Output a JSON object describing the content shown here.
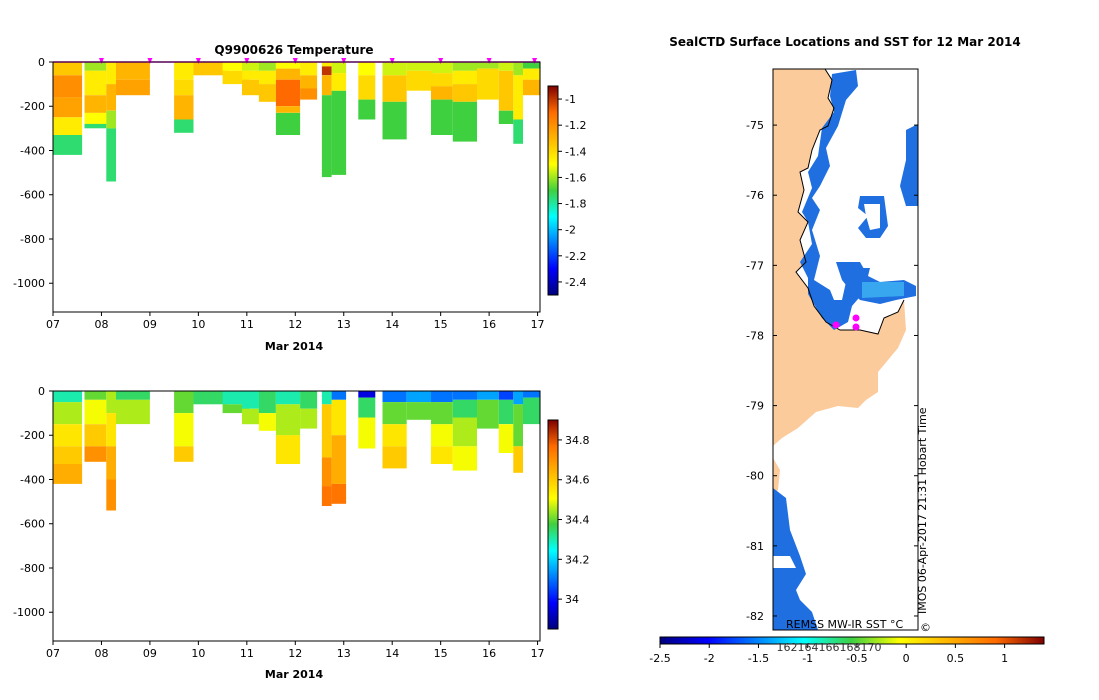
{
  "chart_data": [
    {
      "type": "heatmap",
      "title": "Q9900626  Temperature",
      "xlabel": "Mar 2014",
      "ylabel": "",
      "x_tick_labels": [
        "07",
        "08",
        "09",
        "10",
        "11",
        "12",
        "13",
        "14",
        "15",
        "16",
        "17"
      ],
      "x_range_days": [
        7,
        17.05
      ],
      "y_tick_labels": [
        "0",
        "-200",
        "-400",
        "-600",
        "-800",
        "-1000"
      ],
      "ylim": [
        -1130,
        0
      ],
      "colorbar_ticks": [
        "-1",
        "-1.2",
        "-1.4",
        "-1.6",
        "-1.8",
        "-2",
        "-2.2",
        "-2.4"
      ],
      "colorbar_range": [
        -2.5,
        -0.9
      ],
      "profile_markers": [
        8,
        9,
        10,
        11,
        12,
        13,
        14,
        15,
        16,
        17
      ],
      "profiles": [
        {
          "day": 7.0,
          "w": 0.6,
          "depth": 420,
          "layers": [
            [
              0,
              -1.35
            ],
            [
              60,
              -1.2
            ],
            [
              160,
              -1.25
            ],
            [
              250,
              -1.45
            ],
            [
              330,
              -1.75
            ]
          ]
        },
        {
          "day": 7.65,
          "w": 0.45,
          "depth": 300,
          "layers": [
            [
              0,
              -1.6
            ],
            [
              40,
              -1.45
            ],
            [
              150,
              -1.3
            ],
            [
              230,
              -1.5
            ],
            [
              280,
              -1.75
            ]
          ]
        },
        {
          "day": 8.1,
          "w": 0.2,
          "depth": 540,
          "layers": [
            [
              0,
              -1.45
            ],
            [
              100,
              -1.3
            ],
            [
              220,
              -1.6
            ],
            [
              300,
              -1.75
            ]
          ]
        },
        {
          "day": 8.3,
          "w": 0.7,
          "depth": 150,
          "layers": [
            [
              0,
              -1.3
            ],
            [
              80,
              -1.25
            ]
          ]
        },
        {
          "day": 9.5,
          "w": 0.4,
          "depth": 320,
          "layers": [
            [
              0,
              -1.45
            ],
            [
              80,
              -1.4
            ],
            [
              150,
              -1.3
            ],
            [
              260,
              -1.75
            ]
          ]
        },
        {
          "day": 9.9,
          "w": 0.7,
          "depth": 60,
          "layers": [
            [
              0,
              -1.35
            ]
          ]
        },
        {
          "day": 10.5,
          "w": 0.55,
          "depth": 100,
          "layers": [
            [
              0,
              -1.5
            ],
            [
              40,
              -1.4
            ]
          ]
        },
        {
          "day": 10.9,
          "w": 0.35,
          "depth": 150,
          "layers": [
            [
              0,
              -1.55
            ],
            [
              40,
              -1.45
            ],
            [
              80,
              -1.35
            ]
          ]
        },
        {
          "day": 11.25,
          "w": 0.35,
          "depth": 180,
          "layers": [
            [
              0,
              -1.6
            ],
            [
              40,
              -1.45
            ],
            [
              100,
              -1.35
            ]
          ]
        },
        {
          "day": 11.6,
          "w": 0.5,
          "depth": 330,
          "layers": [
            [
              0,
              -1.5
            ],
            [
              30,
              -1.3
            ],
            [
              80,
              -1.1
            ],
            [
              200,
              -1.3
            ],
            [
              230,
              -1.7
            ]
          ]
        },
        {
          "day": 12.1,
          "w": 0.35,
          "depth": 170,
          "layers": [
            [
              0,
              -1.45
            ],
            [
              60,
              -1.3
            ],
            [
              120,
              -1.2
            ]
          ]
        },
        {
          "day": 12.55,
          "w": 0.2,
          "depth": 520,
          "layers": [
            [
              0,
              -1.45
            ],
            [
              20,
              -1.0
            ],
            [
              60,
              -1.3
            ],
            [
              150,
              -1.7
            ]
          ]
        },
        {
          "day": 12.75,
          "w": 0.3,
          "depth": 510,
          "layers": [
            [
              0,
              -1.55
            ],
            [
              50,
              -1.45
            ],
            [
              130,
              -1.7
            ]
          ]
        },
        {
          "day": 13.3,
          "w": 0.35,
          "depth": 260,
          "layers": [
            [
              0,
              -1.5
            ],
            [
              60,
              -1.4
            ],
            [
              170,
              -1.7
            ]
          ]
        },
        {
          "day": 13.8,
          "w": 0.5,
          "depth": 350,
          "layers": [
            [
              0,
              -1.55
            ],
            [
              60,
              -1.35
            ],
            [
              180,
              -1.7
            ]
          ]
        },
        {
          "day": 14.3,
          "w": 0.55,
          "depth": 130,
          "layers": [
            [
              0,
              -1.55
            ],
            [
              40,
              -1.4
            ]
          ]
        },
        {
          "day": 14.8,
          "w": 0.45,
          "depth": 330,
          "layers": [
            [
              0,
              -1.55
            ],
            [
              50,
              -1.4
            ],
            [
              110,
              -1.3
            ],
            [
              170,
              -1.7
            ]
          ]
        },
        {
          "day": 15.25,
          "w": 0.5,
          "depth": 360,
          "layers": [
            [
              0,
              -1.6
            ],
            [
              40,
              -1.45
            ],
            [
              100,
              -1.35
            ],
            [
              180,
              -1.7
            ]
          ]
        },
        {
          "day": 15.75,
          "w": 0.45,
          "depth": 170,
          "layers": [
            [
              0,
              -1.6
            ],
            [
              30,
              -1.4
            ]
          ]
        },
        {
          "day": 16.2,
          "w": 0.3,
          "depth": 280,
          "layers": [
            [
              0,
              -1.55
            ],
            [
              40,
              -1.35
            ],
            [
              220,
              -1.7
            ]
          ]
        },
        {
          "day": 16.5,
          "w": 0.2,
          "depth": 370,
          "layers": [
            [
              0,
              -1.6
            ],
            [
              60,
              -1.45
            ],
            [
              260,
              -1.75
            ]
          ]
        },
        {
          "day": 16.7,
          "w": 0.35,
          "depth": 150,
          "layers": [
            [
              0,
              -1.7
            ],
            [
              30,
              -1.45
            ],
            [
              80,
              -1.3
            ]
          ]
        }
      ]
    },
    {
      "type": "heatmap",
      "title": "",
      "xlabel": "Mar 2014",
      "ylabel": "",
      "x_tick_labels": [
        "07",
        "08",
        "09",
        "10",
        "11",
        "12",
        "13",
        "14",
        "15",
        "16",
        "17"
      ],
      "x_range_days": [
        7,
        17.05
      ],
      "y_tick_labels": [
        "0",
        "-200",
        "-400",
        "-600",
        "-800",
        "-1000"
      ],
      "ylim": [
        -1130,
        0
      ],
      "colorbar_ticks": [
        "34.8",
        "34.6",
        "34.4",
        "34.2",
        "34"
      ],
      "colorbar_range": [
        33.85,
        34.9
      ],
      "profiles": [
        {
          "day": 7.0,
          "w": 0.6,
          "depth": 420,
          "layers": [
            [
              0,
              34.3
            ],
            [
              50,
              34.45
            ],
            [
              150,
              34.55
            ],
            [
              250,
              34.6
            ],
            [
              330,
              34.65
            ]
          ]
        },
        {
          "day": 7.65,
          "w": 0.45,
          "depth": 320,
          "layers": [
            [
              0,
              34.4
            ],
            [
              40,
              34.5
            ],
            [
              150,
              34.6
            ],
            [
              250,
              34.7
            ]
          ]
        },
        {
          "day": 8.1,
          "w": 0.2,
          "depth": 540,
          "layers": [
            [
              0,
              34.45
            ],
            [
              100,
              34.55
            ],
            [
              250,
              34.65
            ],
            [
              400,
              34.7
            ]
          ]
        },
        {
          "day": 8.3,
          "w": 0.7,
          "depth": 150,
          "layers": [
            [
              0,
              34.35
            ],
            [
              40,
              34.45
            ]
          ]
        },
        {
          "day": 9.5,
          "w": 0.4,
          "depth": 320,
          "layers": [
            [
              0,
              34.4
            ],
            [
              100,
              34.5
            ],
            [
              250,
              34.6
            ]
          ]
        },
        {
          "day": 9.9,
          "w": 0.7,
          "depth": 60,
          "layers": [
            [
              0,
              34.35
            ]
          ]
        },
        {
          "day": 10.5,
          "w": 0.55,
          "depth": 100,
          "layers": [
            [
              0,
              34.3
            ],
            [
              60,
              34.4
            ]
          ]
        },
        {
          "day": 10.9,
          "w": 0.35,
          "depth": 150,
          "layers": [
            [
              0,
              34.3
            ],
            [
              80,
              34.45
            ]
          ]
        },
        {
          "day": 11.25,
          "w": 0.35,
          "depth": 180,
          "layers": [
            [
              0,
              34.35
            ],
            [
              100,
              34.5
            ]
          ]
        },
        {
          "day": 11.6,
          "w": 0.5,
          "depth": 330,
          "layers": [
            [
              0,
              34.3
            ],
            [
              60,
              34.45
            ],
            [
              200,
              34.55
            ]
          ]
        },
        {
          "day": 12.1,
          "w": 0.35,
          "depth": 170,
          "layers": [
            [
              0,
              34.35
            ],
            [
              80,
              34.45
            ]
          ]
        },
        {
          "day": 12.55,
          "w": 0.2,
          "depth": 520,
          "layers": [
            [
              0,
              34.3
            ],
            [
              60,
              34.6
            ],
            [
              300,
              34.7
            ],
            [
              430,
              34.75
            ]
          ]
        },
        {
          "day": 12.75,
          "w": 0.3,
          "depth": 510,
          "layers": [
            [
              0,
              34.1
            ],
            [
              40,
              34.55
            ],
            [
              200,
              34.65
            ],
            [
              420,
              34.75
            ]
          ]
        },
        {
          "day": 13.3,
          "w": 0.35,
          "depth": 260,
          "layers": [
            [
              0,
              33.95
            ],
            [
              30,
              34.35
            ],
            [
              120,
              34.5
            ]
          ]
        },
        {
          "day": 13.8,
          "w": 0.5,
          "depth": 350,
          "layers": [
            [
              0,
              34.1
            ],
            [
              50,
              34.4
            ],
            [
              150,
              34.55
            ],
            [
              250,
              34.6
            ]
          ]
        },
        {
          "day": 14.3,
          "w": 0.55,
          "depth": 130,
          "layers": [
            [
              0,
              34.15
            ],
            [
              50,
              34.4
            ]
          ]
        },
        {
          "day": 14.8,
          "w": 0.45,
          "depth": 330,
          "layers": [
            [
              0,
              34.1
            ],
            [
              50,
              34.4
            ],
            [
              150,
              34.5
            ],
            [
              250,
              34.55
            ]
          ]
        },
        {
          "day": 15.25,
          "w": 0.5,
          "depth": 360,
          "layers": [
            [
              0,
              34.1
            ],
            [
              40,
              34.35
            ],
            [
              120,
              34.45
            ],
            [
              250,
              34.5
            ]
          ]
        },
        {
          "day": 15.75,
          "w": 0.45,
          "depth": 170,
          "layers": [
            [
              0,
              34.15
            ],
            [
              40,
              34.4
            ]
          ]
        },
        {
          "day": 16.2,
          "w": 0.3,
          "depth": 280,
          "layers": [
            [
              0,
              34.05
            ],
            [
              40,
              34.35
            ],
            [
              150,
              34.5
            ]
          ]
        },
        {
          "day": 16.5,
          "w": 0.2,
          "depth": 370,
          "layers": [
            [
              0,
              34.15
            ],
            [
              60,
              34.4
            ],
            [
              250,
              34.6
            ]
          ]
        },
        {
          "day": 16.7,
          "w": 0.35,
          "depth": 150,
          "layers": [
            [
              0,
              34.1
            ],
            [
              30,
              34.35
            ]
          ]
        }
      ]
    },
    {
      "type": "map",
      "title": "SealCTD Surface Locations and SST for 12 Mar 2014",
      "lat_tick_labels": [
        "-75",
        "-76",
        "-77",
        "-78",
        "-79",
        "-80",
        "-81",
        "-82"
      ],
      "lat_range": [
        -82.2,
        -74.2
      ],
      "product_label": "REMSS MW-IR SST °C",
      "inner_colorbar_ticks": [
        "162",
        "164",
        "166",
        "168",
        "170"
      ],
      "colorbar_ticks": [
        "-2.5",
        "-2",
        "-1.5",
        "-1",
        "-0.5",
        "0",
        "0.5",
        "1"
      ],
      "colorbar_range": [
        -2.5,
        1.4
      ],
      "sst_value": -1.75,
      "seal_locations": [
        {
          "lon_label": "",
          "lat": -77.85
        },
        {
          "lon_label": "",
          "lat": -77.75
        },
        {
          "lon_label": "",
          "lat": -77.85
        }
      ],
      "watermark": "IMOS 06-Apr-2017 21:31 Hobart Time",
      "copyright": "©"
    }
  ],
  "colors": {
    "land": "#fccb9c",
    "ocean_sst": "#1f6fe0",
    "ocean_light": "#38a7ef",
    "marker": "#ff00ff"
  }
}
